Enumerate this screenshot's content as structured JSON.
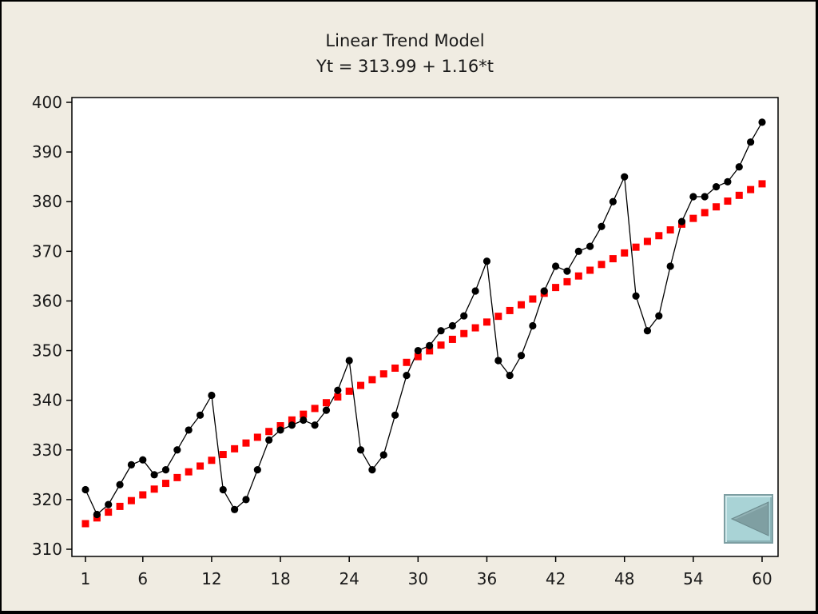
{
  "chart_data": {
    "type": "line",
    "title": "Linear Trend Model",
    "subtitle": "Yt = 313.99 + 1.16*t",
    "xlabel": "",
    "ylabel": "",
    "xlim": [
      1,
      60
    ],
    "ylim": [
      310,
      400
    ],
    "x_ticks": [
      1,
      6,
      12,
      18,
      24,
      30,
      36,
      42,
      48,
      54,
      60
    ],
    "y_ticks": [
      310,
      320,
      330,
      340,
      350,
      360,
      370,
      380,
      390,
      400
    ],
    "grid": false,
    "legend": "none",
    "series": [
      {
        "color": "#000000",
        "marker": "circle",
        "connected": true,
        "values": [
          322,
          317,
          319,
          323,
          327,
          328,
          325,
          326,
          330,
          334,
          337,
          341,
          322,
          318,
          320,
          326,
          332,
          334,
          335,
          336,
          335,
          338,
          342,
          348,
          330,
          326,
          329,
          337,
          345,
          350,
          351,
          354,
          355,
          357,
          362,
          368,
          348,
          345,
          349,
          355,
          362,
          367,
          366,
          370,
          371,
          375,
          380,
          385,
          361,
          354,
          357,
          367,
          376,
          381,
          381,
          383,
          384,
          387,
          392,
          396
        ]
      },
      {
        "color": "#ff0000",
        "marker": "square",
        "connected": false,
        "intercept": 313.99,
        "slope": 1.16
      }
    ]
  },
  "nav": {
    "back_icon": "triangle-left-icon",
    "button_color": "#a9d3d6"
  }
}
